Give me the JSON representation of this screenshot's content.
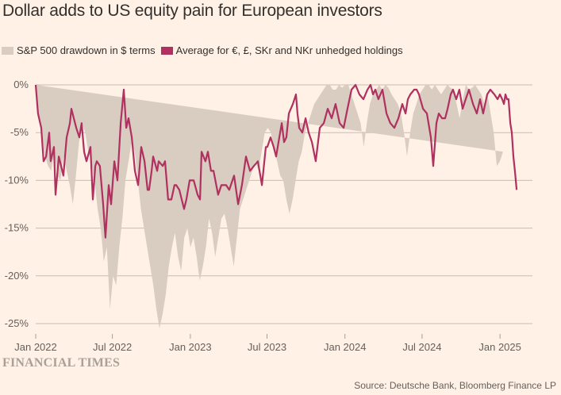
{
  "header": {
    "title": "Dollar adds to US equity pain for European investors"
  },
  "footer": {
    "brand": "FINANCIAL TIMES",
    "source": "Source: Deutsche Bank, Bloomberg Finance LP"
  },
  "chart_data": {
    "type": "area",
    "title": "Dollar adds to US equity pain for European investors",
    "xlabel": "",
    "ylabel": "",
    "ylim": [
      -25,
      0
    ],
    "yticks": [
      0,
      -5,
      -10,
      -15,
      -20,
      -25
    ],
    "ytick_labels": [
      "0%",
      "-5%",
      "-10%",
      "-15%",
      "-20%",
      "-25%"
    ],
    "xlim": [
      "2022-01-01",
      "2025-04-10"
    ],
    "xticks": [
      "2022-01-01",
      "2022-07-01",
      "2023-01-01",
      "2023-07-01",
      "2024-01-01",
      "2024-07-01",
      "2025-01-01"
    ],
    "xtick_labels": [
      "Jan 2022",
      "Jul 2022",
      "Jan 2023",
      "Jul 2023",
      "Jan 2024",
      "Jul 2024",
      "Jan 2025"
    ],
    "grid": true,
    "legend": "top-left",
    "colors": {
      "sp500": "#d9ccc1",
      "avg": "#b0305f",
      "grid": "#c9bcb1"
    },
    "series": [
      {
        "name": "S&P 500 drawdown in $ terms",
        "kind": "area",
        "x_year_frac": [
          0,
          0.02,
          0.04,
          0.06,
          0.08,
          0.1,
          0.12,
          0.14,
          0.16,
          0.18,
          0.2,
          0.22,
          0.24,
          0.26,
          0.28,
          0.3,
          0.32,
          0.34,
          0.36,
          0.38,
          0.4,
          0.42,
          0.44,
          0.46,
          0.48,
          0.5,
          0.52,
          0.54,
          0.56,
          0.58,
          0.6,
          0.62,
          0.64,
          0.66,
          0.68,
          0.7,
          0.72,
          0.74,
          0.76,
          0.78,
          0.8,
          0.82,
          0.84,
          0.86,
          0.88,
          0.9,
          0.92,
          0.94,
          0.96,
          0.98,
          1.0,
          1.02,
          1.04,
          1.06,
          1.08,
          1.1,
          1.12,
          1.14,
          1.16,
          1.18,
          1.2,
          1.22,
          1.24,
          1.26,
          1.28,
          1.3,
          1.32,
          1.34,
          1.36,
          1.38,
          1.4,
          1.42,
          1.44,
          1.46,
          1.48,
          1.5,
          1.52,
          1.54,
          1.56,
          1.58,
          1.6,
          1.62,
          1.64,
          1.66,
          1.68,
          1.7,
          1.72,
          1.74,
          1.76,
          1.78,
          1.8,
          1.82,
          1.84,
          1.86,
          1.88,
          1.9,
          1.92,
          1.94,
          1.96,
          1.98,
          2.0,
          2.02,
          2.04,
          2.06,
          2.08,
          2.1,
          2.12,
          2.14,
          2.16,
          2.18,
          2.2,
          2.22,
          2.24,
          2.26,
          2.28,
          2.3,
          2.32,
          2.34,
          2.36,
          2.38,
          2.4,
          2.42,
          2.44,
          2.46,
          2.48,
          2.5,
          2.52,
          2.54,
          2.56,
          2.58,
          2.6,
          2.62,
          2.64,
          2.66,
          2.68,
          2.7,
          2.72,
          2.74,
          2.76,
          2.78,
          2.8,
          2.82,
          2.84,
          2.86,
          2.88,
          2.9,
          2.92,
          2.94,
          2.96,
          2.98,
          3.0,
          3.02,
          3.04,
          3.06,
          3.08,
          3.1,
          3.12,
          3.14,
          3.16,
          3.18,
          3.2,
          3.22,
          3.24,
          3.26,
          3.28
        ],
        "values": [
          0,
          -3,
          -5,
          -7.5,
          -8.5,
          -9,
          -7,
          -9.5,
          -10,
          -7.5,
          -9,
          -10.5,
          -12.5,
          -9.5,
          -6,
          -4,
          -5,
          -7,
          -8,
          -10,
          -13,
          -15,
          -18.5,
          -17,
          -23.5,
          -20,
          -21,
          -17,
          -14,
          -10,
          -8,
          -6,
          -7,
          -10,
          -13,
          -15,
          -17,
          -19,
          -21,
          -23.5,
          -25.5,
          -24,
          -22,
          -19,
          -17,
          -15.5,
          -18,
          -19.5,
          -16,
          -15,
          -17,
          -16,
          -18,
          -20.5,
          -19,
          -17,
          -14,
          -15.5,
          -18,
          -16,
          -14,
          -13.5,
          -15,
          -17,
          -19,
          -16,
          -13,
          -12,
          -11,
          -10,
          -9,
          -8,
          -9,
          -7,
          -5,
          -4.5,
          -5,
          -6.5,
          -8,
          -9.5,
          -10,
          -12,
          -13.5,
          -12,
          -10,
          -8,
          -7,
          -5,
          -4,
          -3,
          -2,
          -1.5,
          -1,
          -0.5,
          0,
          0,
          -0.5,
          -0.5,
          0,
          -0.3,
          0,
          0,
          -1,
          -2,
          -3,
          -4,
          -6.5,
          -4,
          -2,
          -1,
          -0.5,
          0,
          -0.5,
          0,
          -0.3,
          -1,
          -1.5,
          -2,
          -3,
          -5,
          -7.5,
          -5,
          -3,
          -2,
          -1,
          -0.5,
          0,
          0,
          -0.5,
          0,
          -0.5,
          -1,
          -0.5,
          0,
          -0.3,
          -0.5,
          -2,
          -3.5,
          -1.5,
          0,
          -0.5,
          -0.3,
          0,
          -0.5,
          -1,
          -2,
          -1,
          -3,
          -5,
          -8.5,
          -8,
          -7
        ]
      },
      {
        "name": "Average for €, £, SKr and NKr unhedged holdings",
        "kind": "line",
        "x_year_frac": [
          0,
          0.015,
          0.036,
          0.051,
          0.067,
          0.087,
          0.097,
          0.118,
          0.128,
          0.149,
          0.164,
          0.179,
          0.2,
          0.221,
          0.231,
          0.246,
          0.262,
          0.282,
          0.297,
          0.313,
          0.328,
          0.354,
          0.369,
          0.385,
          0.395,
          0.415,
          0.436,
          0.451,
          0.472,
          0.487,
          0.508,
          0.528,
          0.549,
          0.569,
          0.585,
          0.6,
          0.621,
          0.641,
          0.662,
          0.682,
          0.703,
          0.723,
          0.733,
          0.749,
          0.759,
          0.785,
          0.795,
          0.821,
          0.836,
          0.856,
          0.877,
          0.897,
          0.908,
          0.928,
          0.959,
          0.974,
          0.995,
          1.021,
          1.046,
          1.062,
          1.072,
          1.097,
          1.113,
          1.133,
          1.149,
          1.179,
          1.2,
          1.231,
          1.251,
          1.282,
          1.308,
          1.333,
          1.359,
          1.385,
          1.41,
          1.436,
          1.462,
          1.487,
          1.497,
          1.518,
          1.538,
          1.554,
          1.569,
          1.59,
          1.605,
          1.62,
          1.636,
          1.662,
          1.682,
          1.692,
          1.703,
          1.723,
          1.744,
          1.764,
          1.785,
          1.81,
          1.836,
          1.862,
          1.887,
          1.913,
          1.938,
          1.964,
          1.99,
          2.015,
          2.041,
          2.067,
          2.092,
          2.118,
          2.144,
          2.164,
          2.18,
          2.195,
          2.215,
          2.241,
          2.267,
          2.292,
          2.318,
          2.344,
          2.369,
          2.39,
          2.405,
          2.421,
          2.446,
          2.462,
          2.477,
          2.503,
          2.528,
          2.554,
          2.569,
          2.59,
          2.605,
          2.626,
          2.646,
          2.662,
          2.682,
          2.697,
          2.718,
          2.738,
          2.759,
          2.779,
          2.8,
          2.826,
          2.851,
          2.872,
          2.892,
          2.918,
          2.938,
          2.964,
          2.985,
          3.0,
          3.015,
          3.026,
          3.036,
          3.046,
          3.056,
          3.067,
          3.077,
          3.087,
          3.097,
          3.108
        ],
        "values": [
          0,
          -3,
          -4.5,
          -8,
          -7.5,
          -5,
          -8,
          -6.5,
          -11.5,
          -7.5,
          -8.5,
          -9.5,
          -5.5,
          -4,
          -2.5,
          -3.5,
          -4.5,
          -5.5,
          -4,
          -7,
          -8,
          -6.5,
          -12,
          -8.5,
          -8,
          -8.5,
          -12.5,
          -16,
          -10.5,
          -12.5,
          -8,
          -10,
          -4,
          -0.5,
          -4.5,
          -3.5,
          -5.5,
          -9,
          -10.5,
          -6.5,
          -8,
          -11,
          -11,
          -9,
          -7.5,
          -9,
          -8,
          -8.5,
          -8,
          -12,
          -12,
          -10.5,
          -10.5,
          -11,
          -13,
          -12,
          -10,
          -10,
          -11.5,
          -12,
          -7,
          -8,
          -7,
          -9,
          -9,
          -11.5,
          -10.5,
          -10.5,
          -11,
          -9.5,
          -12.5,
          -10.5,
          -7.5,
          -9,
          -8.5,
          -8,
          -10.5,
          -6.5,
          -6.5,
          -5.5,
          -6.5,
          -7.5,
          -6,
          -4,
          -6,
          -5.5,
          -3,
          -2,
          -1,
          -3,
          -4.5,
          -5,
          -3.5,
          -5,
          -6,
          -8,
          -4.5,
          -4,
          -2.5,
          -3.5,
          -2,
          -4,
          -4.5,
          -2.5,
          -0.5,
          0,
          -1,
          -1.5,
          -0.5,
          0,
          -1,
          -0.5,
          -1.5,
          -0.5,
          -3,
          -4,
          -4.5,
          -3.5,
          -2,
          -3,
          -1.5,
          -1,
          -0.5,
          -0.5,
          -1,
          -2.5,
          -3,
          -5.5,
          -8.5,
          -4,
          -3,
          -3.5,
          -3.5,
          -2.5,
          -1,
          -0.5,
          -1.5,
          -0.5,
          -2.5,
          -1.5,
          -0.5,
          -2,
          -3,
          -1.5,
          -3,
          -1,
          -0.5,
          -1,
          -1.5,
          -1,
          -1.5,
          -2,
          -1,
          -1.5,
          -1.5,
          -4,
          -5,
          -7.5,
          -9,
          -11,
          -13,
          -14.5,
          -13.5,
          -14
        ]
      }
    ]
  }
}
